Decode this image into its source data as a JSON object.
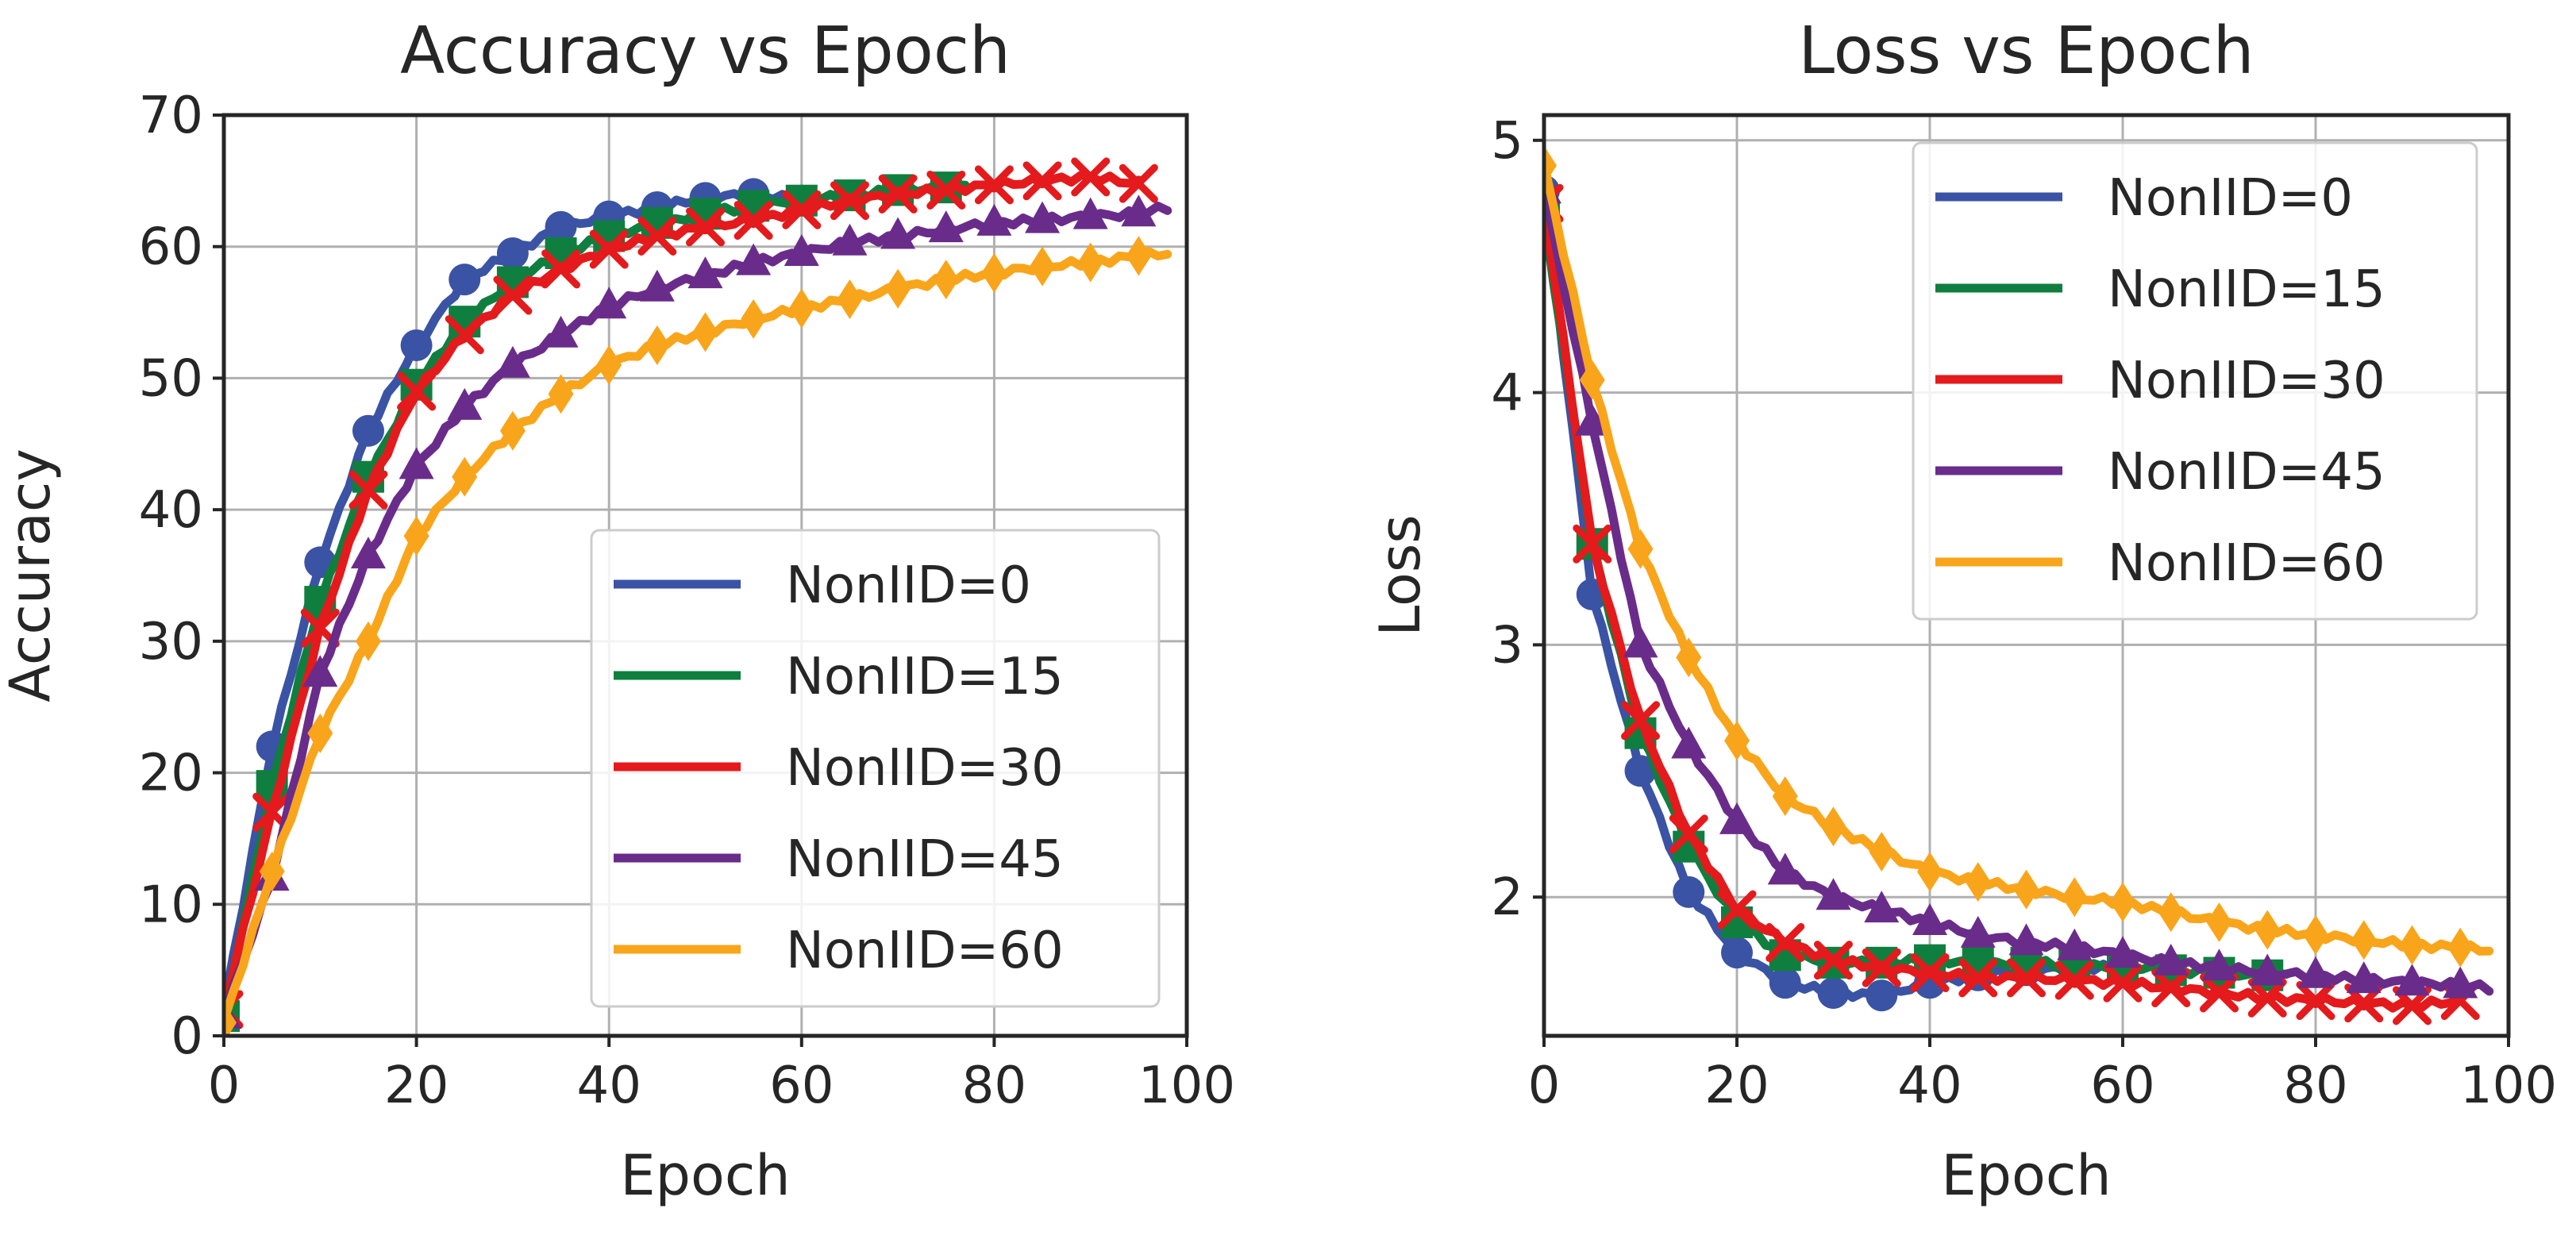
{
  "chart_data": [
    {
      "type": "line",
      "title": "Accuracy vs Epoch",
      "xlabel": "Epoch",
      "ylabel": "Accuracy",
      "xlim": [
        0,
        100
      ],
      "ylim": [
        0,
        70
      ],
      "xticks": [
        "0",
        "20",
        "40",
        "60",
        "80",
        "100"
      ],
      "yticks": [
        "0",
        "10",
        "20",
        "30",
        "40",
        "50",
        "60",
        "70"
      ],
      "grid": true,
      "legend_position": "lower-right",
      "series": [
        {
          "name": "NonIID=0",
          "color": "#3a53a4",
          "marker": "circle",
          "x_end": 60,
          "x": [
            0,
            5,
            10,
            15,
            20,
            25,
            30,
            35,
            40,
            45,
            50,
            55,
            60
          ],
          "y": [
            2,
            22,
            36,
            46,
            52.5,
            57.5,
            59.5,
            61.5,
            62.3,
            63,
            63.7,
            64,
            63.5
          ]
        },
        {
          "name": "NonIID=15",
          "color": "#0f7f3f",
          "marker": "square",
          "x_end": 77,
          "x": [
            0,
            5,
            10,
            15,
            20,
            25,
            30,
            35,
            40,
            45,
            50,
            55,
            60,
            65,
            70,
            75,
            77
          ],
          "y": [
            1.5,
            19,
            33,
            42.5,
            49.5,
            54.3,
            57.3,
            59.5,
            60.8,
            61.8,
            62.5,
            63.1,
            63.5,
            63.9,
            64.3,
            64.5,
            64.6
          ]
        },
        {
          "name": "NonIID=30",
          "color": "#e41a1c",
          "marker": "x",
          "x_end": 95,
          "x": [
            0,
            5,
            10,
            15,
            20,
            25,
            30,
            35,
            40,
            45,
            50,
            55,
            60,
            65,
            70,
            75,
            80,
            85,
            90,
            95
          ],
          "y": [
            2,
            17,
            31,
            41.5,
            49,
            53.3,
            56.3,
            58.3,
            59.8,
            60.8,
            61.5,
            62,
            62.8,
            63.5,
            64,
            64.3,
            64.7,
            65,
            65.3,
            64.8
          ]
        },
        {
          "name": "NonIID=45",
          "color": "#6a2c8a",
          "marker": "triangle",
          "x_end": 98,
          "x": [
            0,
            5,
            10,
            15,
            20,
            25,
            30,
            35,
            40,
            45,
            50,
            55,
            60,
            65,
            70,
            75,
            80,
            85,
            90,
            95,
            98
          ],
          "y": [
            1.5,
            12,
            27.5,
            36.5,
            43.3,
            47.8,
            51,
            53.3,
            55.5,
            56.8,
            57.8,
            58.8,
            59.5,
            60.3,
            60.8,
            61.3,
            61.8,
            62,
            62.3,
            62.5,
            63
          ]
        },
        {
          "name": "NonIID=60",
          "color": "#f9a51b",
          "marker": "diamond",
          "x_end": 98,
          "x": [
            0,
            5,
            10,
            15,
            20,
            25,
            30,
            35,
            40,
            45,
            50,
            55,
            60,
            65,
            70,
            75,
            80,
            85,
            90,
            95,
            98
          ],
          "y": [
            1,
            12.5,
            23,
            30,
            38,
            42.5,
            46,
            48.8,
            51,
            52.5,
            53.5,
            54.5,
            55.3,
            56,
            56.8,
            57.5,
            58,
            58.5,
            58.8,
            59.3,
            59.5
          ]
        }
      ]
    },
    {
      "type": "line",
      "title": "Loss vs Epoch",
      "xlabel": "Epoch",
      "ylabel": "Loss",
      "xlim": [
        0,
        100
      ],
      "ylim": [
        1.45,
        5.1
      ],
      "xticks": [
        "0",
        "20",
        "40",
        "60",
        "80",
        "100"
      ],
      "yticks": [
        "2",
        "3",
        "4",
        "5"
      ],
      "grid": true,
      "legend_position": "upper-right",
      "series": [
        {
          "name": "NonIID=0",
          "color": "#3a53a4",
          "marker": "circle",
          "x_end": 60,
          "x": [
            0,
            5,
            10,
            15,
            20,
            25,
            30,
            35,
            40,
            45,
            50,
            55,
            60
          ],
          "y": [
            4.8,
            3.2,
            2.5,
            2.02,
            1.78,
            1.66,
            1.62,
            1.61,
            1.66,
            1.69,
            1.71,
            1.72,
            1.72
          ]
        },
        {
          "name": "NonIID=15",
          "color": "#0f7f3f",
          "marker": "square",
          "x_end": 77,
          "x": [
            0,
            5,
            10,
            15,
            20,
            25,
            30,
            35,
            40,
            45,
            50,
            55,
            60,
            65,
            70,
            75,
            77
          ],
          "y": [
            4.7,
            3.4,
            2.65,
            2.2,
            1.9,
            1.77,
            1.74,
            1.74,
            1.75,
            1.74,
            1.74,
            1.73,
            1.72,
            1.71,
            1.7,
            1.69,
            1.69
          ]
        },
        {
          "name": "NonIID=30",
          "color": "#e41a1c",
          "marker": "x",
          "x_end": 95,
          "x": [
            0,
            5,
            10,
            15,
            20,
            25,
            30,
            35,
            40,
            45,
            50,
            55,
            60,
            65,
            70,
            75,
            80,
            85,
            90,
            95
          ],
          "y": [
            4.75,
            3.4,
            2.7,
            2.25,
            1.95,
            1.82,
            1.75,
            1.72,
            1.7,
            1.68,
            1.68,
            1.67,
            1.66,
            1.64,
            1.62,
            1.6,
            1.59,
            1.58,
            1.57,
            1.59
          ]
        },
        {
          "name": "NonIID=45",
          "color": "#6a2c8a",
          "marker": "triangle",
          "x_end": 98,
          "x": [
            0,
            5,
            10,
            15,
            20,
            25,
            30,
            35,
            40,
            45,
            50,
            55,
            60,
            65,
            70,
            75,
            80,
            85,
            90,
            95,
            98
          ],
          "y": [
            4.8,
            3.88,
            3.0,
            2.6,
            2.3,
            2.1,
            2.0,
            1.95,
            1.9,
            1.85,
            1.82,
            1.8,
            1.77,
            1.74,
            1.72,
            1.7,
            1.69,
            1.67,
            1.66,
            1.65,
            1.64
          ]
        },
        {
          "name": "NonIID=60",
          "color": "#f9a51b",
          "marker": "diamond",
          "x_end": 98,
          "x": [
            0,
            5,
            10,
            15,
            20,
            25,
            30,
            35,
            40,
            45,
            50,
            55,
            60,
            65,
            70,
            75,
            80,
            85,
            90,
            95,
            98
          ],
          "y": [
            4.9,
            4.05,
            3.38,
            2.95,
            2.62,
            2.4,
            2.28,
            2.18,
            2.1,
            2.06,
            2.03,
            2.0,
            1.98,
            1.94,
            1.9,
            1.87,
            1.85,
            1.83,
            1.81,
            1.8,
            1.79
          ]
        }
      ]
    }
  ]
}
